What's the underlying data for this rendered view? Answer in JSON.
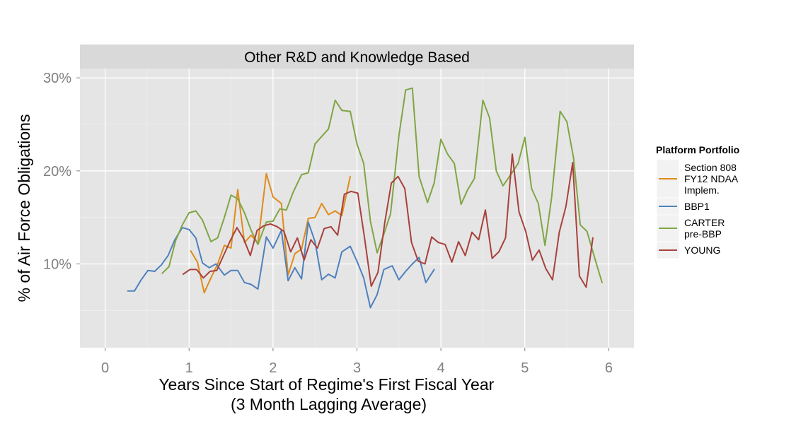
{
  "chart_data": {
    "type": "line",
    "title": "Other R&D and Knowledge Based",
    "xlabel": [
      "Years Since Start of Regime's First Fiscal Year",
      "(3 Month Lagging Average)"
    ],
    "ylabel": "% of Air Force Obligations",
    "xlim": [
      -0.3,
      6.3
    ],
    "ylim": [
      0.01,
      0.31
    ],
    "x_ticks": [
      0,
      1,
      2,
      3,
      4,
      5,
      6
    ],
    "x_tick_labels": [
      "0",
      "1",
      "2",
      "3",
      "4",
      "5",
      "6"
    ],
    "y_ticks": [
      0.1,
      0.2,
      0.3
    ],
    "y_tick_labels": [
      "10%",
      "20%",
      "30%"
    ],
    "grid": true,
    "legend": {
      "title": "Platform Portfolio",
      "position": "right"
    },
    "series": [
      {
        "name": [
          "Section 808",
          "FY12 NDAA",
          "Implem."
        ],
        "color": "#e08b1a",
        "points": [
          [
            1.02,
            0.114
          ],
          [
            1.1,
            0.102
          ],
          [
            1.18,
            0.069
          ],
          [
            1.26,
            0.085
          ],
          [
            1.34,
            0.1
          ],
          [
            1.42,
            0.12
          ],
          [
            1.5,
            0.117
          ],
          [
            1.58,
            0.18
          ],
          [
            1.66,
            0.123
          ],
          [
            1.74,
            0.131
          ],
          [
            1.82,
            0.122
          ],
          [
            1.92,
            0.197
          ],
          [
            2.0,
            0.172
          ],
          [
            2.1,
            0.165
          ],
          [
            2.18,
            0.088
          ],
          [
            2.26,
            0.111
          ],
          [
            2.34,
            0.116
          ],
          [
            2.42,
            0.149
          ],
          [
            2.5,
            0.15
          ],
          [
            2.58,
            0.165
          ],
          [
            2.66,
            0.153
          ],
          [
            2.74,
            0.157
          ],
          [
            2.82,
            0.152
          ],
          [
            2.92,
            0.194
          ]
        ]
      },
      {
        "name": "BBP1",
        "color": "#4e81bd",
        "points": [
          [
            0.27,
            0.071
          ],
          [
            0.35,
            0.071
          ],
          [
            0.43,
            0.083
          ],
          [
            0.51,
            0.093
          ],
          [
            0.59,
            0.092
          ],
          [
            0.67,
            0.099
          ],
          [
            0.75,
            0.109
          ],
          [
            0.83,
            0.126
          ],
          [
            0.92,
            0.139
          ],
          [
            1.0,
            0.137
          ],
          [
            1.08,
            0.128
          ],
          [
            1.16,
            0.101
          ],
          [
            1.24,
            0.096
          ],
          [
            1.32,
            0.1
          ],
          [
            1.42,
            0.088
          ],
          [
            1.5,
            0.093
          ],
          [
            1.58,
            0.093
          ],
          [
            1.66,
            0.08
          ],
          [
            1.74,
            0.078
          ],
          [
            1.82,
            0.073
          ],
          [
            1.92,
            0.129
          ],
          [
            2.0,
            0.117
          ],
          [
            2.1,
            0.136
          ],
          [
            2.18,
            0.082
          ],
          [
            2.26,
            0.096
          ],
          [
            2.34,
            0.084
          ],
          [
            2.42,
            0.145
          ],
          [
            2.5,
            0.124
          ],
          [
            2.58,
            0.083
          ],
          [
            2.66,
            0.089
          ],
          [
            2.74,
            0.085
          ],
          [
            2.82,
            0.113
          ],
          [
            2.92,
            0.119
          ],
          [
            3.0,
            0.103
          ],
          [
            3.08,
            0.085
          ],
          [
            3.16,
            0.053
          ],
          [
            3.24,
            0.067
          ],
          [
            3.32,
            0.094
          ],
          [
            3.42,
            0.098
          ],
          [
            3.5,
            0.083
          ],
          [
            3.58,
            0.092
          ],
          [
            3.66,
            0.1
          ],
          [
            3.74,
            0.107
          ],
          [
            3.82,
            0.08
          ],
          [
            3.92,
            0.094
          ]
        ]
      },
      {
        "name": [
          "CARTER",
          "pre-BBP"
        ],
        "color": "#80a544",
        "points": [
          [
            0.68,
            0.09
          ],
          [
            0.76,
            0.097
          ],
          [
            0.84,
            0.125
          ],
          [
            0.92,
            0.142
          ],
          [
            1.0,
            0.155
          ],
          [
            1.08,
            0.157
          ],
          [
            1.16,
            0.147
          ],
          [
            1.26,
            0.124
          ],
          [
            1.34,
            0.128
          ],
          [
            1.42,
            0.15
          ],
          [
            1.5,
            0.174
          ],
          [
            1.58,
            0.17
          ],
          [
            1.66,
            0.155
          ],
          [
            1.74,
            0.136
          ],
          [
            1.82,
            0.121
          ],
          [
            1.92,
            0.145
          ],
          [
            2.0,
            0.146
          ],
          [
            2.08,
            0.159
          ],
          [
            2.16,
            0.158
          ],
          [
            2.24,
            0.177
          ],
          [
            2.34,
            0.196
          ],
          [
            2.42,
            0.198
          ],
          [
            2.5,
            0.229
          ],
          [
            2.58,
            0.237
          ],
          [
            2.66,
            0.245
          ],
          [
            2.74,
            0.276
          ],
          [
            2.82,
            0.265
          ],
          [
            2.92,
            0.264
          ],
          [
            3.0,
            0.229
          ],
          [
            3.08,
            0.208
          ],
          [
            3.16,
            0.146
          ],
          [
            3.24,
            0.112
          ],
          [
            3.32,
            0.132
          ],
          [
            3.4,
            0.154
          ],
          [
            3.5,
            0.238
          ],
          [
            3.58,
            0.287
          ],
          [
            3.66,
            0.289
          ],
          [
            3.74,
            0.194
          ],
          [
            3.84,
            0.166
          ],
          [
            3.92,
            0.187
          ],
          [
            4.0,
            0.234
          ],
          [
            4.08,
            0.218
          ],
          [
            4.16,
            0.208
          ],
          [
            4.24,
            0.164
          ],
          [
            4.32,
            0.18
          ],
          [
            4.4,
            0.192
          ],
          [
            4.5,
            0.276
          ],
          [
            4.58,
            0.257
          ],
          [
            4.66,
            0.2
          ],
          [
            4.74,
            0.184
          ],
          [
            4.84,
            0.197
          ],
          [
            4.92,
            0.208
          ],
          [
            5.0,
            0.236
          ],
          [
            5.08,
            0.181
          ],
          [
            5.16,
            0.165
          ],
          [
            5.24,
            0.12
          ],
          [
            5.32,
            0.172
          ],
          [
            5.42,
            0.264
          ],
          [
            5.5,
            0.253
          ],
          [
            5.58,
            0.214
          ],
          [
            5.66,
            0.142
          ],
          [
            5.74,
            0.135
          ],
          [
            5.84,
            0.104
          ],
          [
            5.92,
            0.08
          ]
        ]
      },
      {
        "name": "YOUNG",
        "color": "#a8413c",
        "points": [
          [
            0.93,
            0.089
          ],
          [
            1.01,
            0.094
          ],
          [
            1.09,
            0.094
          ],
          [
            1.17,
            0.085
          ],
          [
            1.25,
            0.092
          ],
          [
            1.33,
            0.093
          ],
          [
            1.41,
            0.109
          ],
          [
            1.49,
            0.125
          ],
          [
            1.57,
            0.139
          ],
          [
            1.65,
            0.127
          ],
          [
            1.73,
            0.109
          ],
          [
            1.81,
            0.136
          ],
          [
            1.89,
            0.141
          ],
          [
            1.97,
            0.143
          ],
          [
            2.05,
            0.14
          ],
          [
            2.13,
            0.135
          ],
          [
            2.21,
            0.113
          ],
          [
            2.29,
            0.128
          ],
          [
            2.37,
            0.104
          ],
          [
            2.45,
            0.126
          ],
          [
            2.53,
            0.117
          ],
          [
            2.61,
            0.138
          ],
          [
            2.69,
            0.14
          ],
          [
            2.77,
            0.131
          ],
          [
            2.85,
            0.175
          ],
          [
            2.93,
            0.178
          ],
          [
            3.01,
            0.176
          ],
          [
            3.09,
            0.128
          ],
          [
            3.17,
            0.076
          ],
          [
            3.25,
            0.091
          ],
          [
            3.33,
            0.144
          ],
          [
            3.41,
            0.187
          ],
          [
            3.49,
            0.194
          ],
          [
            3.57,
            0.181
          ],
          [
            3.65,
            0.123
          ],
          [
            3.73,
            0.103
          ],
          [
            3.81,
            0.1
          ],
          [
            3.89,
            0.129
          ],
          [
            3.97,
            0.123
          ],
          [
            4.05,
            0.121
          ],
          [
            4.13,
            0.102
          ],
          [
            4.21,
            0.124
          ],
          [
            4.29,
            0.109
          ],
          [
            4.37,
            0.134
          ],
          [
            4.45,
            0.126
          ],
          [
            4.53,
            0.158
          ],
          [
            4.61,
            0.106
          ],
          [
            4.69,
            0.113
          ],
          [
            4.77,
            0.128
          ],
          [
            4.85,
            0.218
          ],
          [
            4.93,
            0.156
          ],
          [
            5.01,
            0.135
          ],
          [
            5.09,
            0.104
          ],
          [
            5.17,
            0.115
          ],
          [
            5.25,
            0.095
          ],
          [
            5.33,
            0.083
          ],
          [
            5.41,
            0.134
          ],
          [
            5.49,
            0.162
          ],
          [
            5.57,
            0.209
          ],
          [
            5.65,
            0.087
          ],
          [
            5.73,
            0.075
          ],
          [
            5.81,
            0.128
          ]
        ]
      }
    ]
  }
}
